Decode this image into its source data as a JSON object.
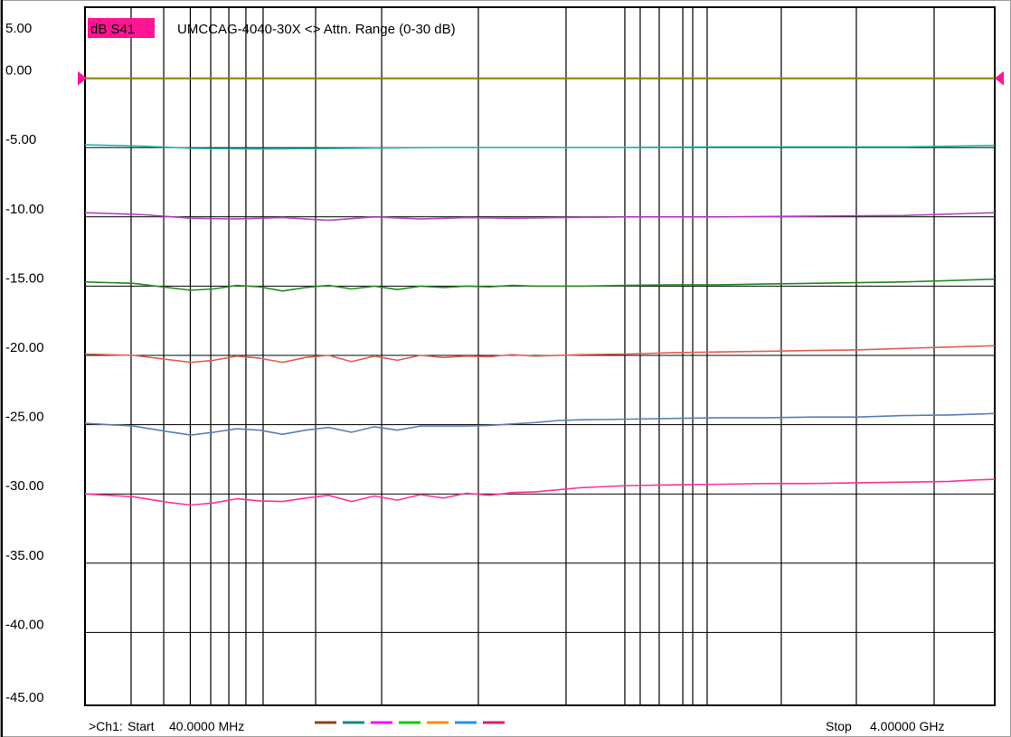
{
  "chart_data": {
    "type": "line",
    "badge": "dB S41",
    "title": "UMCCAG-4040-30X <> Attn. Range (0-30 dB)",
    "ylim": [
      -45,
      5
    ],
    "yticks": [
      "5.00",
      "0.00",
      "-5.00",
      "-10.00",
      "-15.00",
      "-20.00",
      "-25.00",
      "-30.00",
      "-35.00",
      "-40.00",
      "-45.00"
    ],
    "ytick_values": [
      5,
      0,
      -5,
      -10,
      -15,
      -20,
      -25,
      -30,
      -35,
      -40,
      -45
    ],
    "x_start_mhz": 40,
    "x_stop_mhz": 4000,
    "grid": true,
    "reference_level": 0,
    "footer": {
      "channel": ">Ch1:",
      "start_label": "Start",
      "start_value": "40.0000 MHz",
      "stop_label": "Stop",
      "stop_value": "4.00000 GHz"
    },
    "legend_colors": [
      "#8b4513",
      "#008b8b",
      "#ff00ff",
      "#00cc00",
      "#ff8c00",
      "#1e90ff",
      "#e0186c"
    ],
    "series": [
      {
        "color": "#808000",
        "x": [
          40,
          4000
        ],
        "y": [
          0.0,
          0.0
        ]
      },
      {
        "color": "#20b2aa",
        "x": [
          40,
          300,
          500,
          800,
          1200,
          1600,
          2000,
          2400,
          2800,
          3200,
          3600,
          3800,
          4000
        ],
        "y": [
          -4.8,
          -4.9,
          -5.05,
          -5.1,
          -5.05,
          -5.0,
          -5.0,
          -5.0,
          -4.95,
          -4.95,
          -4.95,
          -4.9,
          -4.85
        ]
      },
      {
        "color": "#b040c0",
        "x": [
          40,
          300,
          500,
          700,
          900,
          1100,
          1300,
          1500,
          1700,
          1900,
          2100,
          2400,
          2800,
          3200,
          3600,
          3900,
          4000
        ],
        "y": [
          -9.7,
          -9.85,
          -10.1,
          -10.15,
          -10.05,
          -10.25,
          -10.0,
          -10.15,
          -10.05,
          -10.1,
          -10.05,
          -10.0,
          -10.0,
          -9.95,
          -9.9,
          -9.75,
          -9.7
        ]
      },
      {
        "color": "#228b22",
        "x": [
          40,
          250,
          400,
          500,
          600,
          700,
          800,
          900,
          1000,
          1100,
          1200,
          1300,
          1400,
          1500,
          1600,
          1700,
          1800,
          1900,
          2000,
          2200,
          2400,
          2600,
          2800,
          3000,
          3200,
          3400,
          3600,
          3800,
          4000
        ],
        "y": [
          -14.7,
          -14.8,
          -15.1,
          -15.3,
          -15.2,
          -14.95,
          -15.05,
          -15.35,
          -15.1,
          -14.95,
          -15.2,
          -15.0,
          -15.25,
          -15.0,
          -15.1,
          -15.0,
          -15.05,
          -14.95,
          -15.0,
          -15.0,
          -14.95,
          -14.9,
          -14.9,
          -14.85,
          -14.8,
          -14.75,
          -14.7,
          -14.6,
          -14.5
        ]
      },
      {
        "color": "#e06050",
        "x": [
          40,
          250,
          400,
          500,
          600,
          700,
          800,
          900,
          1000,
          1100,
          1200,
          1300,
          1400,
          1500,
          1600,
          1700,
          1800,
          1900,
          2000,
          2200,
          2400,
          2600,
          2800,
          3000,
          3200,
          3400,
          3600,
          3800,
          4000
        ],
        "y": [
          -19.9,
          -20.0,
          -20.3,
          -20.5,
          -20.35,
          -20.05,
          -20.2,
          -20.5,
          -20.15,
          -20.0,
          -20.45,
          -20.05,
          -20.35,
          -20.0,
          -20.15,
          -20.05,
          -20.1,
          -19.95,
          -20.05,
          -19.95,
          -19.9,
          -19.8,
          -19.75,
          -19.7,
          -19.65,
          -19.6,
          -19.5,
          -19.4,
          -19.3
        ]
      },
      {
        "color": "#5b7fb5",
        "x": [
          40,
          250,
          400,
          500,
          600,
          700,
          800,
          900,
          1000,
          1100,
          1200,
          1300,
          1400,
          1500,
          1600,
          1700,
          1800,
          1900,
          2000,
          2100,
          2200,
          2400,
          2600,
          2800,
          3000,
          3200,
          3400,
          3600,
          3800,
          4000
        ],
        "y": [
          -24.9,
          -25.1,
          -25.5,
          -25.75,
          -25.55,
          -25.3,
          -25.4,
          -25.7,
          -25.4,
          -25.2,
          -25.55,
          -25.15,
          -25.4,
          -25.1,
          -25.1,
          -25.1,
          -25.05,
          -24.95,
          -24.85,
          -24.7,
          -24.65,
          -24.6,
          -24.55,
          -24.5,
          -24.5,
          -24.45,
          -24.45,
          -24.35,
          -24.3,
          -24.2
        ]
      },
      {
        "color": "#ff3399",
        "x": [
          40,
          250,
          400,
          500,
          600,
          700,
          800,
          900,
          1000,
          1100,
          1200,
          1300,
          1400,
          1500,
          1600,
          1700,
          1800,
          1900,
          2000,
          2200,
          2400,
          2600,
          2800,
          3000,
          3200,
          3400,
          3600,
          3800,
          3900,
          4000
        ],
        "y": [
          -30.0,
          -30.2,
          -30.6,
          -30.8,
          -30.65,
          -30.35,
          -30.5,
          -30.55,
          -30.3,
          -30.1,
          -30.55,
          -30.15,
          -30.45,
          -30.05,
          -30.3,
          -29.95,
          -30.1,
          -29.9,
          -29.85,
          -29.55,
          -29.4,
          -29.35,
          -29.3,
          -29.25,
          -29.25,
          -29.2,
          -29.15,
          -29.1,
          -29.0,
          -28.95
        ]
      }
    ]
  }
}
